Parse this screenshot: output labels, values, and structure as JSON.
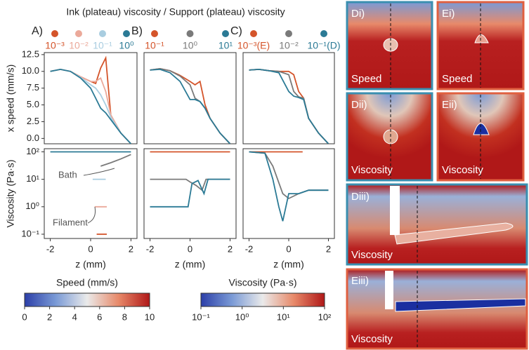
{
  "title": "Ink (plateau) viscosity / Support (plateau) viscosity",
  "chart_data": [
    {
      "type": "line",
      "label": "A)",
      "ylabel": "x speed (mm/s)",
      "xlim": [
        -2.3,
        2.3
      ],
      "ylim": [
        -0.8,
        12.8
      ],
      "yticks": [
        {
          "value": 0,
          "label": "0.0"
        },
        2.5,
        {
          "value": 5,
          "label": "5.0"
        },
        7.5,
        {
          "value": 10,
          "label": "10.0"
        },
        12.5
      ],
      "x": [
        -2,
        -1.5,
        -1,
        -0.5,
        0,
        0.25,
        0.5,
        0.75,
        1,
        1.5,
        2
      ],
      "series": [
        {
          "name": "10⁻³",
          "color": "#d4542a",
          "values": [
            10,
            10.3,
            10,
            9.2,
            8.5,
            8.2,
            10.5,
            12,
            3.5,
            0.8,
            -0.8
          ]
        },
        {
          "name": "10⁻²",
          "color": "#eba99a",
          "values": [
            10,
            10.3,
            10,
            9.2,
            8.5,
            8.5,
            9,
            7,
            3.5,
            0.8,
            -0.8
          ]
        },
        {
          "name": "10⁻¹",
          "color": "#a9cde0",
          "values": [
            10,
            10.3,
            10,
            9.1,
            8,
            7.5,
            6.5,
            5,
            3.2,
            0.8,
            -0.8
          ]
        },
        {
          "name": "10⁰",
          "color": "#2b7a95",
          "values": [
            10,
            10.3,
            10,
            9,
            7.5,
            6,
            4.5,
            3.8,
            2.8,
            0.8,
            -0.8
          ]
        }
      ]
    },
    {
      "type": "line",
      "ylabel": "Viscosity (Pa·s)",
      "xlabel": "z (mm)",
      "yscale": "log",
      "xlim": [
        -2.3,
        2.3
      ],
      "ylim": [
        0.07,
        130
      ],
      "xticks": [
        -2,
        0,
        2
      ],
      "yticks": [
        {
          "value": 0.1,
          "label": "10⁻¹"
        },
        {
          "value": 1,
          "label": "10⁰"
        },
        {
          "value": 10,
          "label": "10¹"
        },
        {
          "value": 100,
          "label": "10²"
        }
      ],
      "annotations": [
        "Bath",
        "Filament"
      ],
      "series": [
        {
          "color": "#2b7a95",
          "x": [
            -2,
            2
          ],
          "values": [
            100,
            100
          ]
        },
        {
          "color": "#7a7a7a",
          "x": [
            0.5,
            1,
            1.5,
            2
          ],
          "values": [
            30,
            40,
            55,
            80
          ]
        },
        {
          "color": "#a9cde0",
          "x": [
            0.1,
            0.75
          ],
          "values": [
            10,
            10
          ]
        },
        {
          "color": "#eba99a",
          "x": [
            0.2,
            0.8
          ],
          "values": [
            1,
            1
          ]
        },
        {
          "color": "#d4542a",
          "x": [
            0.3,
            0.8
          ],
          "values": [
            0.1,
            0.1
          ]
        }
      ]
    },
    {
      "type": "line",
      "label": "B)",
      "xlim": [
        -2.3,
        2.3
      ],
      "ylim": [
        -0.8,
        12.8
      ],
      "x": [
        -2,
        -1.5,
        -1,
        -0.5,
        0,
        0.25,
        0.5,
        0.75,
        1,
        1.5,
        2
      ],
      "series": [
        {
          "name": "10⁻¹",
          "color": "#d4542a",
          "values": [
            10.2,
            10.4,
            10.1,
            9.4,
            8.5,
            8,
            8.5,
            5,
            3,
            0.8,
            -0.8
          ]
        },
        {
          "name": "10⁰",
          "color": "#7a7a7a",
          "values": [
            10.2,
            10.4,
            10.1,
            9.3,
            8,
            6,
            5.5,
            4.5,
            3,
            0.8,
            -0.8
          ]
        },
        {
          "name": "10¹",
          "color": "#2b7a95",
          "values": [
            10.2,
            10.3,
            9.8,
            8.5,
            5.8,
            5.8,
            5.5,
            4.5,
            3,
            0.8,
            -0.8
          ]
        }
      ]
    },
    {
      "type": "line",
      "xlabel": "z (mm)",
      "yscale": "log",
      "xlim": [
        -2.3,
        2.3
      ],
      "ylim": [
        0.07,
        130
      ],
      "xticks": [
        -2,
        0,
        2
      ],
      "series": [
        {
          "color": "#d4542a",
          "x": [
            -2,
            2
          ],
          "values": [
            100,
            100
          ]
        },
        {
          "color": "#7a7a7a",
          "x": [
            -2,
            -0.2,
            0,
            0.3,
            0.6,
            0.8,
            2
          ],
          "values": [
            10,
            10,
            8,
            6,
            4,
            10,
            10
          ]
        },
        {
          "color": "#2b7a95",
          "x": [
            -2,
            -0.1,
            0.1,
            0.4,
            0.7,
            0.9,
            2
          ],
          "values": [
            1,
            1,
            7,
            9,
            3,
            10,
            10
          ]
        }
      ]
    },
    {
      "type": "line",
      "label": "C)",
      "xlim": [
        -2.3,
        2.3
      ],
      "ylim": [
        -0.8,
        12.8
      ],
      "x": [
        -2,
        -1.5,
        -1,
        -0.5,
        0,
        0.25,
        0.5,
        0.75,
        1,
        1.5,
        2
      ],
      "series": [
        {
          "name": "10⁻³(E)",
          "color": "#d4542a",
          "values": [
            10.2,
            10.3,
            10.1,
            10,
            10,
            9.5,
            7,
            6,
            3,
            0.8,
            -0.8
          ]
        },
        {
          "name": "10⁻²",
          "color": "#7a7a7a",
          "values": [
            10.2,
            10.3,
            10.1,
            10,
            9.5,
            7,
            6.2,
            6,
            3,
            0.8,
            -0.8
          ]
        },
        {
          "name": "10⁻¹(D)",
          "color": "#2b7a95",
          "values": [
            10.2,
            10.3,
            10.1,
            9.8,
            7,
            6.3,
            6.1,
            5.8,
            3,
            0.8,
            -0.8
          ]
        }
      ]
    },
    {
      "type": "line",
      "xlabel": "z (mm)",
      "yscale": "log",
      "xlim": [
        -2.3,
        2.3
      ],
      "ylim": [
        0.07,
        130
      ],
      "xticks": [
        -2,
        0,
        2
      ],
      "series": [
        {
          "color": "#d4542a",
          "x": [
            -2,
            0.7
          ],
          "values": [
            100,
            100
          ]
        },
        {
          "color": "#7a7a7a",
          "x": [
            -2,
            -1.2,
            -0.8,
            -0.3,
            0,
            0.5,
            1,
            2
          ],
          "values": [
            100,
            90,
            30,
            3,
            2,
            3,
            4,
            4
          ]
        },
        {
          "color": "#2b7a95",
          "x": [
            -2,
            -1.2,
            -0.8,
            -0.5,
            -0.3,
            0,
            0.5,
            1,
            2
          ],
          "values": [
            100,
            90,
            10,
            1,
            0.3,
            3,
            3,
            4,
            4
          ]
        }
      ]
    },
    {
      "type": "colorbar",
      "title": "Speed (mm/s)",
      "xlim": [
        0,
        10
      ],
      "xticks": [
        0,
        2,
        4,
        6,
        8,
        10
      ],
      "colors": [
        "#2c3fa8",
        "#7a9ad6",
        "#eaeaea",
        "#e88a6a",
        "#b01818"
      ]
    },
    {
      "type": "colorbar",
      "title": "Viscosity (Pa·s)",
      "xscale": "log",
      "xlim": [
        0.1,
        100
      ],
      "xticks": [
        {
          "value": 0.1,
          "label": "10⁻¹"
        },
        {
          "value": 1,
          "label": "10⁰"
        },
        {
          "value": 10,
          "label": "10¹"
        },
        {
          "value": 100,
          "label": "10²"
        }
      ],
      "colors": [
        "#2c3fa8",
        "#7a9ad6",
        "#eaeaea",
        "#e88a6a",
        "#b01818"
      ]
    }
  ],
  "panels": [
    {
      "label": "Di)",
      "caption": "Speed"
    },
    {
      "label": "Ei)",
      "caption": "Speed"
    },
    {
      "label": "Dii)",
      "caption": "Viscosity"
    },
    {
      "label": "Eii)",
      "caption": "Viscosity"
    },
    {
      "label": "Diii)",
      "caption": "Viscosity"
    },
    {
      "label": "Eiii)",
      "caption": "Viscosity"
    }
  ]
}
